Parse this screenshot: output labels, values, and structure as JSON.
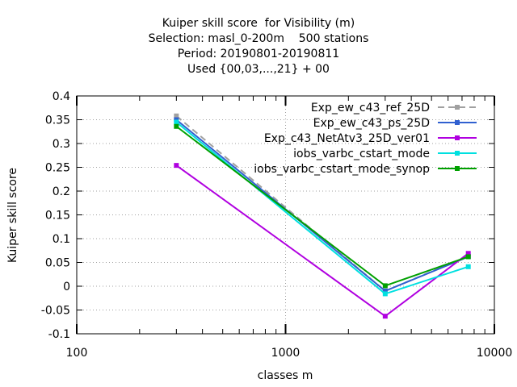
{
  "chart_data": {
    "type": "line",
    "title_lines": [
      "Kuiper skill score  for Visibility (m)",
      "Selection: masl_0-200m    500 stations",
      "Period: 20190801-20190811",
      "Used {00,03,...,21} + 00"
    ],
    "xlabel": "classes m",
    "ylabel": "Kuiper skill score",
    "x_scale": "log",
    "xlim": [
      100,
      10000
    ],
    "ylim": [
      -0.1,
      0.4
    ],
    "x_ticks": [
      100,
      1000,
      10000
    ],
    "x_tick_labels": [
      "100",
      "1000",
      "10000"
    ],
    "y_ticks": [
      -0.1,
      -0.05,
      0,
      0.05,
      0.1,
      0.15,
      0.2,
      0.25,
      0.3,
      0.35,
      0.4
    ],
    "y_tick_labels": [
      "-0.1",
      "-0.05",
      "0",
      "0.05",
      "0.1",
      "0.15",
      "0.2",
      "0.25",
      "0.3",
      "0.35",
      "0.4"
    ],
    "grid": true,
    "legend_position": "top-right",
    "x": [
      300,
      3000,
      7500
    ],
    "series": [
      {
        "name": "Exp_ew_c43_ref_25D",
        "values": [
          0.358,
          -0.01,
          0.063
        ],
        "color": "#a0a0a0",
        "dashed": true
      },
      {
        "name": "Exp_ew_c43_ps_25D",
        "values": [
          0.35,
          -0.01,
          0.062
        ],
        "color": "#3060d0",
        "dashed": false
      },
      {
        "name": "Exp_c43_NetAtv3_25D_ver01",
        "values": [
          0.254,
          -0.063,
          0.069
        ],
        "color": "#b000e0",
        "dashed": false
      },
      {
        "name": "iobs_varbc_cstart_mode",
        "values": [
          0.345,
          -0.016,
          0.041
        ],
        "color": "#00e0e0",
        "dashed": false
      },
      {
        "name": "iobs_varbc_cstart_mode_synop",
        "values": [
          0.336,
          0.001,
          0.062
        ],
        "color": "#00a000",
        "dashed": false
      }
    ]
  }
}
